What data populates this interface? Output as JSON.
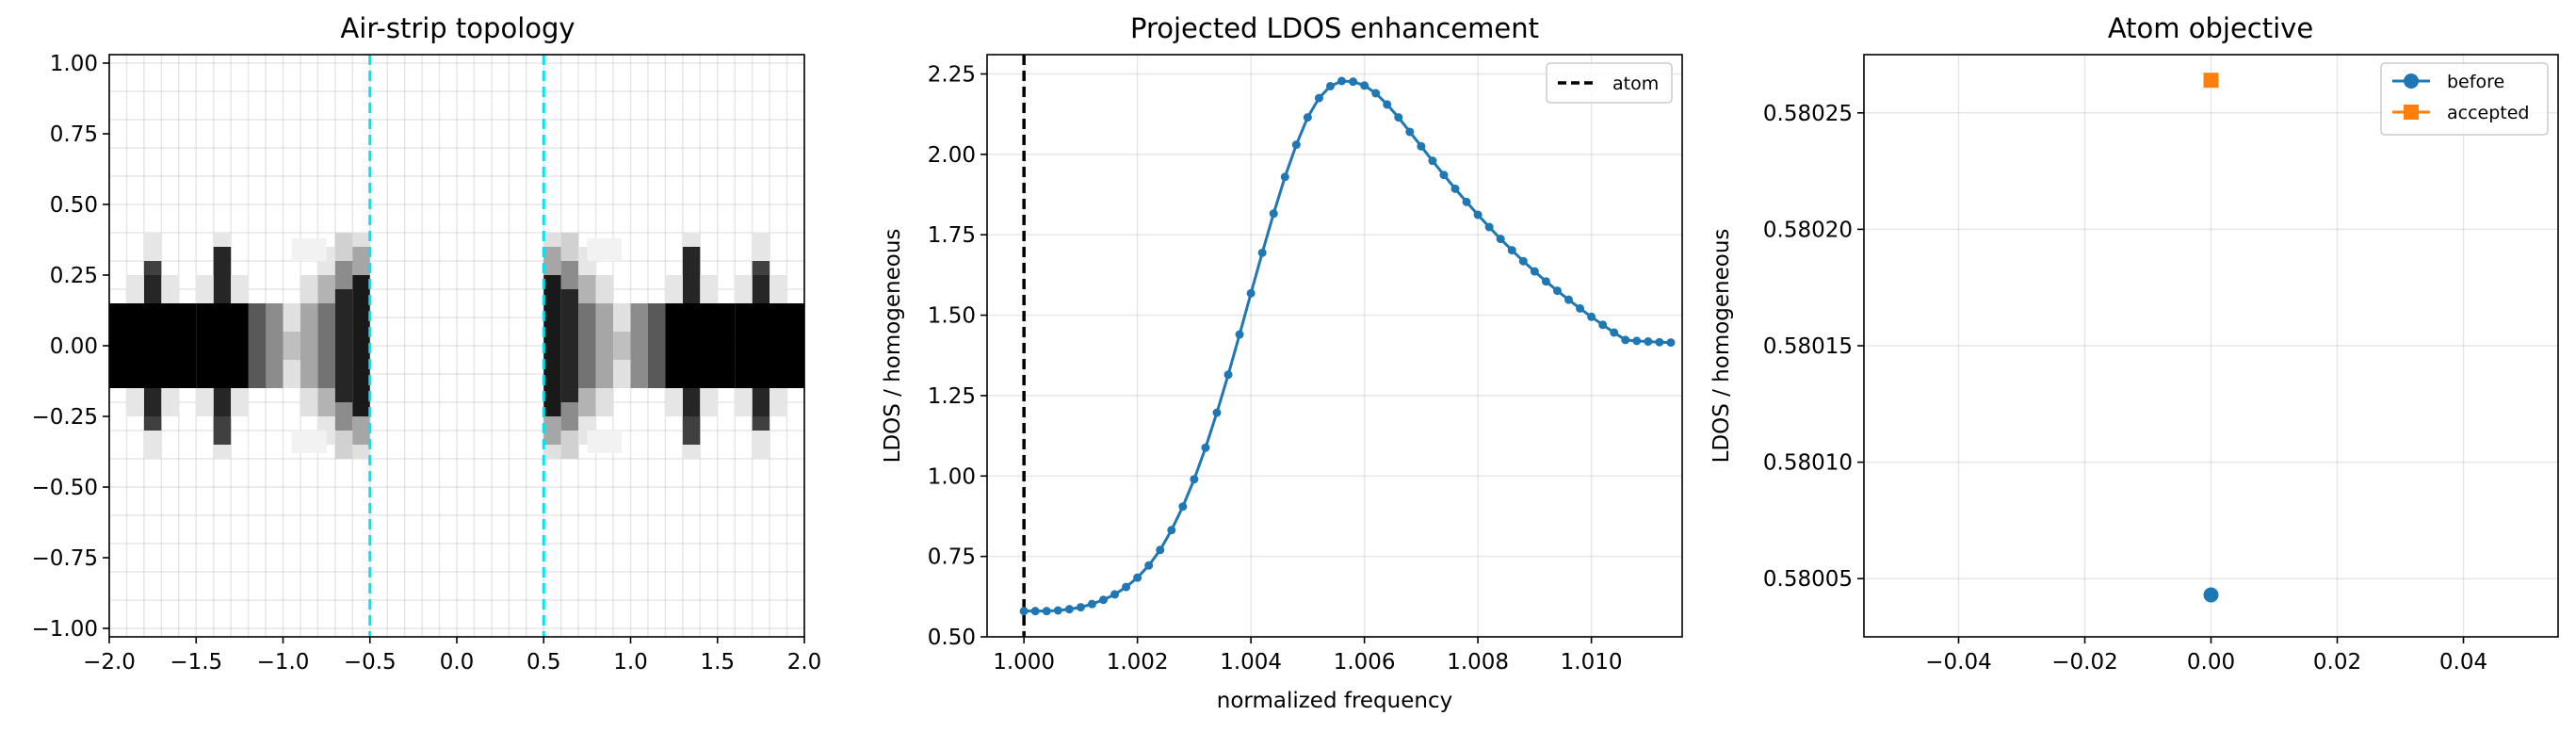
{
  "chart_data": [
    {
      "type": "heatmap",
      "title": "Air-strip topology",
      "xlim": [
        -2.0,
        2.0
      ],
      "ylim": [
        -1.03,
        1.03
      ],
      "xticks": [
        "−2.0",
        "−1.5",
        "−1.0",
        "−0.5",
        "0.0",
        "0.5",
        "1.0",
        "1.5",
        "2.0"
      ],
      "xtick_values": [
        -2.0,
        -1.5,
        -1.0,
        -0.5,
        0.0,
        0.5,
        1.0,
        1.5,
        2.0
      ],
      "yticks": [
        "−1.00",
        "−0.75",
        "−0.50",
        "−0.25",
        "0.00",
        "0.25",
        "0.50",
        "0.75",
        "1.00"
      ],
      "ytick_values": [
        -1.0,
        -0.75,
        -0.5,
        -0.25,
        0.0,
        0.25,
        0.5,
        0.75,
        1.0
      ],
      "grid": true,
      "grid_dx": 0.1,
      "grid_dy": 0.05,
      "vlines": [
        -0.5,
        0.5
      ],
      "vline_color": "#00e5ee",
      "colormap": "gray_r",
      "cells": [
        [
          -2.0,
          -1.5,
          -0.15,
          0.15,
          1.0
        ],
        [
          -1.8,
          -1.7,
          -0.25,
          -0.15,
          0.85
        ],
        [
          -1.8,
          -1.7,
          0.15,
          0.25,
          0.85
        ],
        [
          -1.8,
          -1.7,
          -0.3,
          -0.25,
          0.75
        ],
        [
          -1.8,
          -1.7,
          0.25,
          0.3,
          0.75
        ],
        [
          -1.9,
          -1.8,
          0.15,
          0.25,
          0.1
        ],
        [
          -1.9,
          -1.8,
          -0.25,
          -0.15,
          0.1
        ],
        [
          -1.8,
          -1.7,
          0.3,
          0.4,
          0.1
        ],
        [
          -1.8,
          -1.7,
          -0.4,
          -0.3,
          0.1
        ],
        [
          -1.7,
          -1.6,
          0.15,
          0.25,
          0.1
        ],
        [
          -1.7,
          -1.6,
          -0.25,
          -0.15,
          0.1
        ],
        [
          -1.5,
          -1.0,
          -0.15,
          0.15,
          1.0
        ],
        [
          -1.4,
          -1.3,
          -0.25,
          -0.15,
          0.85
        ],
        [
          -1.4,
          -1.3,
          0.15,
          0.35,
          0.85
        ],
        [
          -1.4,
          -1.3,
          -0.35,
          -0.25,
          0.75
        ],
        [
          -1.5,
          -1.4,
          0.15,
          0.25,
          0.1
        ],
        [
          -1.5,
          -1.4,
          -0.25,
          -0.15,
          0.1
        ],
        [
          -1.4,
          -1.3,
          0.35,
          0.4,
          0.1
        ],
        [
          -1.4,
          -1.3,
          -0.4,
          -0.35,
          0.1
        ],
        [
          -1.3,
          -1.2,
          0.15,
          0.25,
          0.1
        ],
        [
          -1.3,
          -1.2,
          -0.25,
          -0.15,
          0.1
        ],
        [
          -1.2,
          -1.1,
          -0.15,
          0.15,
          0.65
        ],
        [
          -1.1,
          -1.0,
          -0.15,
          0.15,
          0.45
        ],
        [
          -1.0,
          -0.9,
          -0.15,
          0.15,
          0.25
        ],
        [
          -0.9,
          -0.8,
          -0.15,
          0.15,
          0.35
        ],
        [
          -1.0,
          -0.9,
          0.05,
          0.15,
          0.12
        ],
        [
          -1.0,
          -0.9,
          -0.15,
          -0.05,
          0.12
        ],
        [
          -0.9,
          -0.8,
          0.15,
          0.25,
          0.12
        ],
        [
          -0.9,
          -0.8,
          -0.25,
          -0.15,
          0.12
        ],
        [
          -0.8,
          -0.7,
          -0.15,
          0.15,
          0.55
        ],
        [
          -0.8,
          -0.7,
          0.15,
          0.25,
          0.3
        ],
        [
          -0.8,
          -0.7,
          -0.25,
          -0.15,
          0.3
        ],
        [
          -0.8,
          -0.7,
          0.25,
          0.35,
          0.1
        ],
        [
          -0.8,
          -0.7,
          -0.35,
          -0.25,
          0.1
        ],
        [
          -0.7,
          -0.6,
          -0.2,
          0.2,
          0.85
        ],
        [
          -0.7,
          -0.6,
          0.2,
          0.3,
          0.45
        ],
        [
          -0.7,
          -0.6,
          -0.3,
          -0.2,
          0.45
        ],
        [
          -0.7,
          -0.6,
          0.3,
          0.4,
          0.18
        ],
        [
          -0.7,
          -0.6,
          -0.4,
          -0.3,
          0.18
        ],
        [
          -0.6,
          -0.5,
          -0.25,
          0.25,
          0.9
        ],
        [
          -0.6,
          -0.5,
          0.25,
          0.35,
          0.35
        ],
        [
          -0.6,
          -0.5,
          -0.35,
          -0.25,
          0.35
        ],
        [
          -0.6,
          -0.5,
          0.35,
          0.4,
          0.12
        ],
        [
          -0.6,
          -0.5,
          -0.4,
          -0.35,
          0.12
        ],
        [
          -0.95,
          -0.75,
          0.3,
          0.38,
          0.05
        ],
        [
          -0.95,
          -0.75,
          -0.38,
          -0.3,
          0.05
        ],
        [
          0.5,
          0.6,
          -0.25,
          0.25,
          0.9
        ],
        [
          0.5,
          0.6,
          0.25,
          0.35,
          0.35
        ],
        [
          0.5,
          0.6,
          -0.35,
          -0.25,
          0.35
        ],
        [
          0.5,
          0.6,
          0.35,
          0.4,
          0.12
        ],
        [
          0.5,
          0.6,
          -0.4,
          -0.35,
          0.12
        ],
        [
          0.6,
          0.7,
          -0.2,
          0.2,
          0.85
        ],
        [
          0.6,
          0.7,
          0.2,
          0.3,
          0.45
        ],
        [
          0.6,
          0.7,
          -0.3,
          -0.2,
          0.45
        ],
        [
          0.6,
          0.7,
          0.3,
          0.4,
          0.18
        ],
        [
          0.6,
          0.7,
          -0.4,
          -0.3,
          0.18
        ],
        [
          0.7,
          0.8,
          -0.15,
          0.15,
          0.55
        ],
        [
          0.7,
          0.8,
          0.15,
          0.25,
          0.3
        ],
        [
          0.7,
          0.8,
          -0.25,
          -0.15,
          0.3
        ],
        [
          0.7,
          0.8,
          0.25,
          0.35,
          0.1
        ],
        [
          0.7,
          0.8,
          -0.35,
          -0.25,
          0.1
        ],
        [
          0.8,
          0.9,
          -0.15,
          0.15,
          0.35
        ],
        [
          0.9,
          1.0,
          -0.15,
          0.15,
          0.25
        ],
        [
          0.8,
          0.9,
          0.15,
          0.25,
          0.12
        ],
        [
          0.8,
          0.9,
          -0.25,
          -0.15,
          0.12
        ],
        [
          0.9,
          1.0,
          0.05,
          0.15,
          0.12
        ],
        [
          0.9,
          1.0,
          -0.15,
          -0.05,
          0.12
        ],
        [
          1.0,
          1.1,
          -0.15,
          0.15,
          0.45
        ],
        [
          1.1,
          1.2,
          -0.15,
          0.15,
          0.65
        ],
        [
          1.2,
          1.6,
          -0.15,
          0.15,
          1.0
        ],
        [
          1.3,
          1.4,
          -0.25,
          -0.15,
          0.85
        ],
        [
          1.3,
          1.4,
          0.15,
          0.35,
          0.85
        ],
        [
          1.3,
          1.4,
          -0.35,
          -0.25,
          0.75
        ],
        [
          1.2,
          1.3,
          0.15,
          0.25,
          0.1
        ],
        [
          1.2,
          1.3,
          -0.25,
          -0.15,
          0.1
        ],
        [
          1.3,
          1.4,
          0.35,
          0.4,
          0.1
        ],
        [
          1.3,
          1.4,
          -0.4,
          -0.35,
          0.1
        ],
        [
          1.4,
          1.5,
          0.15,
          0.25,
          0.1
        ],
        [
          1.4,
          1.5,
          -0.25,
          -0.15,
          0.1
        ],
        [
          1.6,
          2.0,
          -0.15,
          0.15,
          1.0
        ],
        [
          1.7,
          1.8,
          -0.25,
          -0.15,
          0.85
        ],
        [
          1.7,
          1.8,
          0.15,
          0.25,
          0.85
        ],
        [
          1.7,
          1.8,
          -0.3,
          -0.25,
          0.75
        ],
        [
          1.7,
          1.8,
          0.25,
          0.3,
          0.75
        ],
        [
          1.6,
          1.7,
          0.15,
          0.25,
          0.1
        ],
        [
          1.6,
          1.7,
          -0.25,
          -0.15,
          0.1
        ],
        [
          1.8,
          1.9,
          0.15,
          0.25,
          0.1
        ],
        [
          1.8,
          1.9,
          -0.25,
          -0.15,
          0.1
        ],
        [
          1.7,
          1.8,
          0.3,
          0.4,
          0.1
        ],
        [
          1.7,
          1.8,
          -0.4,
          -0.3,
          0.1
        ],
        [
          0.75,
          0.95,
          0.3,
          0.38,
          0.05
        ],
        [
          0.75,
          0.95,
          -0.38,
          -0.3,
          0.05
        ]
      ]
    },
    {
      "type": "line",
      "title": "Projected LDOS enhancement",
      "xlabel": "normalized frequency",
      "ylabel": "LDOS / homogeneous",
      "xlim": [
        0.99935,
        1.0116
      ],
      "ylim": [
        0.5,
        2.31
      ],
      "xticks": [
        "1.000",
        "1.002",
        "1.004",
        "1.006",
        "1.008",
        "1.010"
      ],
      "xtick_values": [
        1.0,
        1.002,
        1.004,
        1.006,
        1.008,
        1.01
      ],
      "yticks": [
        "0.50",
        "0.75",
        "1.00",
        "1.25",
        "1.50",
        "1.75",
        "2.00",
        "2.25"
      ],
      "ytick_values": [
        0.5,
        0.75,
        1.0,
        1.25,
        1.5,
        1.75,
        2.0,
        2.25
      ],
      "grid": true,
      "legend_position": "top-right",
      "vline": {
        "x": 1.0,
        "label": "atom",
        "color": "#000000",
        "style": "dashed"
      },
      "series": [
        {
          "color": "#1f77b4",
          "marker": "circle",
          "x": [
            1.0,
            1.0002,
            1.0004,
            1.0006,
            1.0008,
            1.001,
            1.0012,
            1.0014,
            1.0016,
            1.0018,
            1.002,
            1.0022,
            1.0024,
            1.0026,
            1.0028,
            1.003,
            1.0032,
            1.0034,
            1.0036,
            1.0038,
            1.004,
            1.0042,
            1.0044,
            1.0046,
            1.0048,
            1.005,
            1.0052,
            1.0054,
            1.0056,
            1.0058,
            1.006,
            1.0062,
            1.0064,
            1.0066,
            1.0068,
            1.007,
            1.0072,
            1.0074,
            1.0076,
            1.0078,
            1.008,
            1.0082,
            1.0084,
            1.0086,
            1.0088,
            1.009,
            1.0092,
            1.0094,
            1.0096,
            1.0098,
            1.01,
            1.0102,
            1.0104,
            1.0106,
            1.0108,
            1.011,
            1.0112,
            1.0114
          ],
          "y": [
            0.58,
            0.58,
            0.58,
            0.582,
            0.586,
            0.592,
            0.602,
            0.615,
            0.632,
            0.655,
            0.684,
            0.722,
            0.77,
            0.832,
            0.905,
            0.99,
            1.088,
            1.197,
            1.315,
            1.44,
            1.568,
            1.694,
            1.816,
            1.93,
            2.03,
            2.115,
            2.175,
            2.212,
            2.228,
            2.226,
            2.214,
            2.19,
            2.155,
            2.115,
            2.07,
            2.025,
            1.98,
            1.936,
            1.893,
            1.852,
            1.812,
            1.774,
            1.737,
            1.702,
            1.668,
            1.636,
            1.605,
            1.576,
            1.548,
            1.521,
            1.495,
            1.47,
            1.446,
            1.423,
            1.42,
            1.418,
            1.416,
            1.415
          ]
        }
      ]
    },
    {
      "type": "scatter",
      "title": "Atom objective",
      "ylabel": "LDOS / homogeneous",
      "xlim": [
        -0.055,
        0.055
      ],
      "ylim": [
        0.580025,
        0.580275
      ],
      "xticks": [
        "−0.04",
        "−0.02",
        "0.00",
        "0.02",
        "0.04"
      ],
      "xtick_values": [
        -0.04,
        -0.02,
        0.0,
        0.02,
        0.04
      ],
      "yticks": [
        "0.58005",
        "0.58010",
        "0.58015",
        "0.58020",
        "0.58025"
      ],
      "ytick_values": [
        0.58005,
        0.5801,
        0.58015,
        0.5802,
        0.58025
      ],
      "grid": true,
      "legend_position": "top-right",
      "series": [
        {
          "name": "before",
          "x": [
            0.0
          ],
          "y": [
            0.580043
          ],
          "color": "#1f77b4",
          "marker": "circle"
        },
        {
          "name": "accepted",
          "x": [
            0.0
          ],
          "y": [
            0.580264
          ],
          "color": "#ff7f0e",
          "marker": "square"
        }
      ]
    }
  ]
}
